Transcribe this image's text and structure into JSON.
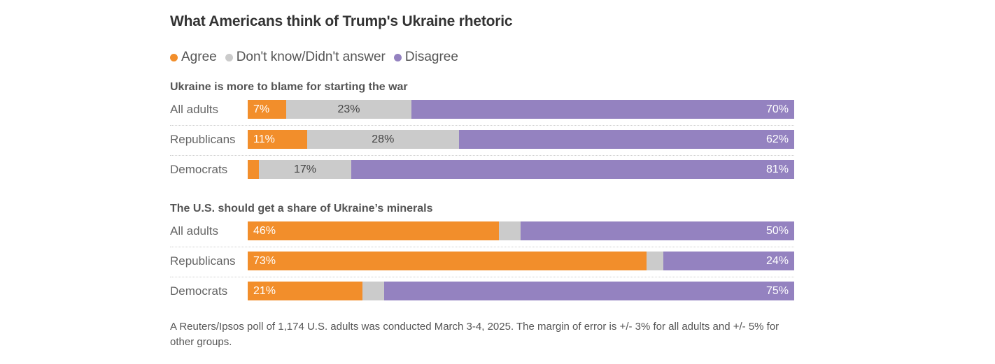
{
  "colors": {
    "agree": "#f28e2b",
    "dont_know": "#cbcbcb",
    "disagree": "#9482c0"
  },
  "chart_data": {
    "type": "bar",
    "orientation": "horizontal-stacked-100",
    "title": "What Americans think of Trump's Ukraine rhetoric",
    "legend": {
      "placement": "top-left",
      "entries": [
        "Agree",
        "Don't know/Didn't answer",
        "Disagree"
      ]
    },
    "series_names": [
      "Agree",
      "Don't know/Didn't answer",
      "Disagree"
    ],
    "panels": [
      {
        "title": "Ukraine is more to blame for starting the war",
        "categories": [
          "All adults",
          "Republicans",
          "Democrats"
        ],
        "series": [
          {
            "name": "Agree",
            "values": [
              7,
              11,
              2
            ],
            "labels": [
              "7%",
              "11%",
              ""
            ]
          },
          {
            "name": "Don't know/Didn't answer",
            "values": [
              23,
              28,
              17
            ],
            "labels": [
              "23%",
              "28%",
              "17%"
            ]
          },
          {
            "name": "Disagree",
            "values": [
              70,
              62,
              81
            ],
            "labels": [
              "70%",
              "62%",
              "81%"
            ]
          }
        ]
      },
      {
        "title": "The U.S. should get a share of Ukraine’s minerals",
        "categories": [
          "All adults",
          "Republicans",
          "Democrats"
        ],
        "series": [
          {
            "name": "Agree",
            "values": [
              46,
              73,
              21
            ],
            "labels": [
              "46%",
              "73%",
              "21%"
            ]
          },
          {
            "name": "Don't know/Didn't answer",
            "values": [
              4,
              3,
              4
            ],
            "labels": [
              "",
              "",
              ""
            ]
          },
          {
            "name": "Disagree",
            "values": [
              50,
              24,
              75
            ],
            "labels": [
              "50%",
              "24%",
              "75%"
            ]
          }
        ]
      }
    ],
    "xlim": [
      0,
      100
    ],
    "grid": false
  },
  "note": "A Reuters/Ipsos poll of 1,174 U.S. adults was conducted March 3-4, 2025. The margin of error is +/- 3% for all adults and +/- 5% for other groups."
}
